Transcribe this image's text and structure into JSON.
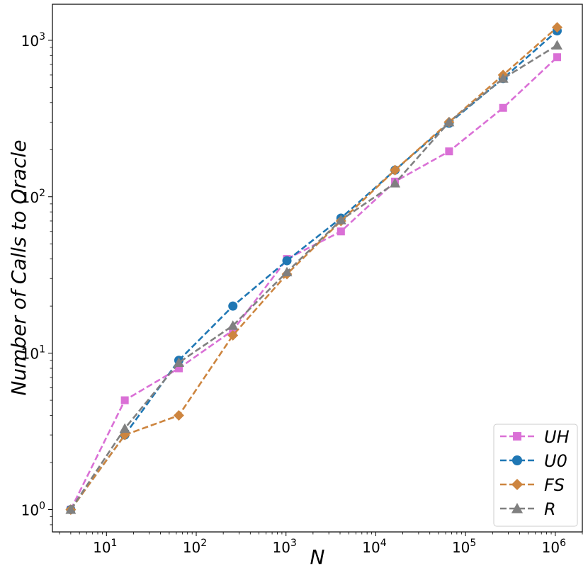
{
  "chart_data": {
    "type": "line",
    "xlabel": "N",
    "ylabel": "Number of Calls to Oracle",
    "xscale": "log",
    "yscale": "log",
    "xlim": [
      2.5,
      2000000
    ],
    "ylim": [
      0.72,
      1700
    ],
    "x_ticks": [
      {
        "value": 10,
        "base": "10",
        "exp": "1"
      },
      {
        "value": 100,
        "base": "10",
        "exp": "2"
      },
      {
        "value": 1000,
        "base": "10",
        "exp": "3"
      },
      {
        "value": 10000,
        "base": "10",
        "exp": "4"
      },
      {
        "value": 100000,
        "base": "10",
        "exp": "5"
      },
      {
        "value": 1000000,
        "base": "10",
        "exp": "6"
      }
    ],
    "y_ticks": [
      {
        "value": 1,
        "base": "10",
        "exp": "0"
      },
      {
        "value": 10,
        "base": "10",
        "exp": "1"
      },
      {
        "value": 100,
        "base": "10",
        "exp": "2"
      },
      {
        "value": 1000,
        "base": "10",
        "exp": "3"
      }
    ],
    "x": [
      4,
      16,
      64,
      256,
      1024,
      4096,
      16384,
      65536,
      262144,
      1048576
    ],
    "series": [
      {
        "name": "UH",
        "color": "#da70d6",
        "marker": "square",
        "values": [
          1,
          5,
          8,
          14,
          40,
          60,
          125,
          195,
          370,
          780
        ]
      },
      {
        "name": "U0",
        "color": "#1f77b4",
        "marker": "circle",
        "values": [
          1,
          3,
          9,
          20,
          39,
          73,
          148,
          295,
          570,
          1150
        ]
      },
      {
        "name": "FS",
        "color": "#cd853f",
        "marker": "diamond",
        "values": [
          1,
          3,
          4,
          13,
          32,
          70,
          148,
          300,
          600,
          1210
        ]
      },
      {
        "name": "R",
        "color": "#808080",
        "marker": "triangle",
        "values": [
          1,
          3.3,
          8.7,
          15,
          33,
          71,
          122,
          300,
          570,
          930
        ]
      }
    ],
    "legend_position": "bottom-right",
    "grid": false
  }
}
